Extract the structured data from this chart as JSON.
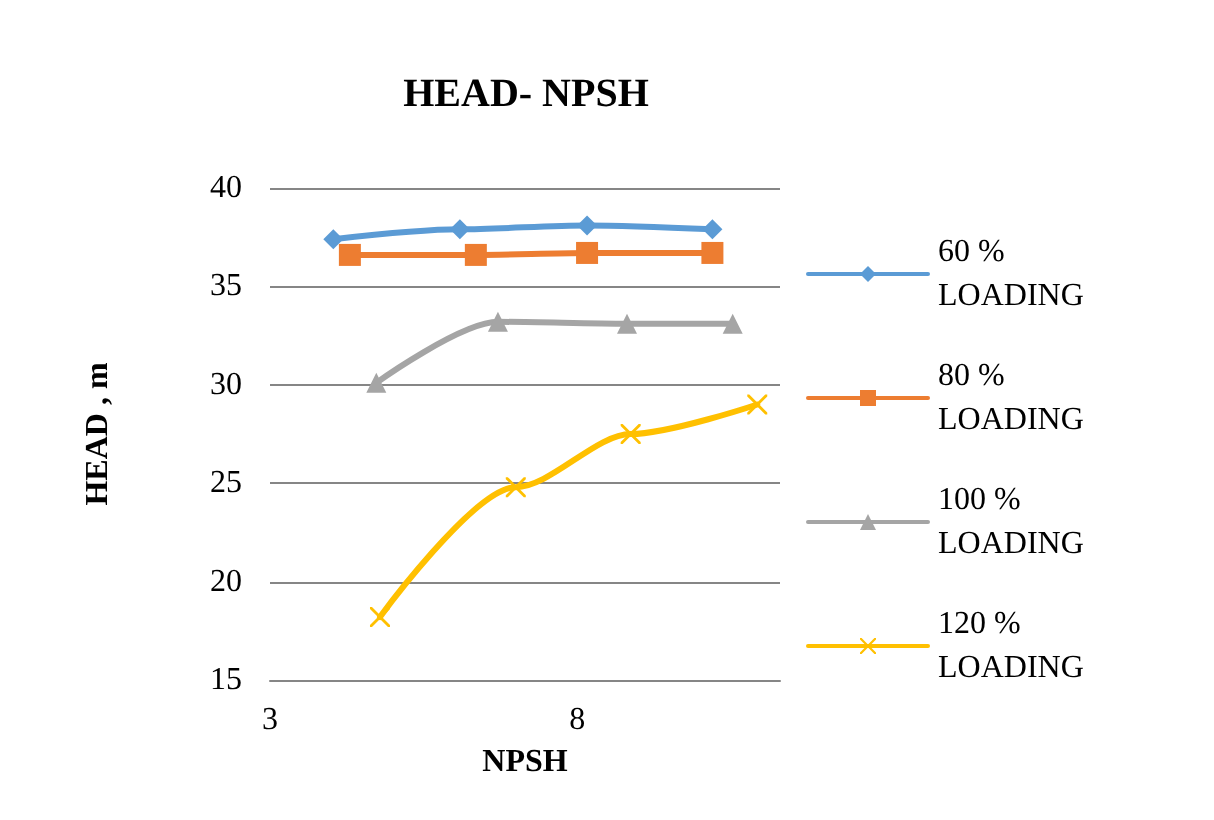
{
  "chart_data": {
    "type": "line",
    "title": "HEAD- NPSH",
    "xlabel": "NPSH",
    "ylabel": "HEAD , m",
    "xlim": [
      3,
      11.3
    ],
    "xticks": [
      3,
      8
    ],
    "ylim": [
      15,
      40
    ],
    "yticks": [
      15,
      20,
      25,
      30,
      35,
      40
    ],
    "grid": "y",
    "legend": "right",
    "line_style": "solid",
    "series": [
      {
        "name": "60 % LOADING",
        "color": "#5b9bd5",
        "marker": "diamond",
        "x": [
          4.03,
          6.09,
          8.16,
          10.2
        ],
        "values": [
          37.4,
          37.9,
          38.1,
          37.9
        ]
      },
      {
        "name": "80 % LOADING",
        "color": "#ed7d31",
        "marker": "square",
        "x": [
          4.3,
          6.35,
          8.16,
          10.2
        ],
        "values": [
          36.6,
          36.6,
          36.7,
          36.7
        ]
      },
      {
        "name": "100 % LOADING",
        "color": "#a5a5a5",
        "marker": "triangle",
        "x": [
          4.73,
          6.71,
          8.81,
          10.53
        ],
        "values": [
          30.1,
          33.2,
          33.1,
          33.1
        ]
      },
      {
        "name": "120 % LOADING",
        "color": "#ffc000",
        "marker": "cross",
        "x": [
          4.79,
          7.0,
          8.87,
          10.93
        ],
        "values": [
          18.2,
          24.8,
          27.5,
          29.0
        ]
      }
    ]
  }
}
